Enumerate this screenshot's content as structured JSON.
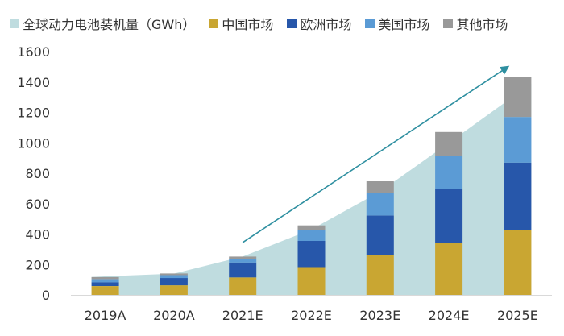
{
  "chart_data": {
    "type": "bar",
    "subtype": "stacked-bar with area",
    "categories": [
      "2019A",
      "2020A",
      "2021E",
      "2022E",
      "2023E",
      "2024E",
      "2025E"
    ],
    "area": {
      "name": "全球动力电池装机量（GWh）",
      "color": "#bfdcdf",
      "values": [
        118,
        140,
        252,
        430,
        680,
        1000,
        1390
      ]
    },
    "series": [
      {
        "name": "中国市场",
        "color": "#c9a632",
        "values": [
          58,
          63,
          115,
          183,
          263,
          340,
          428
        ]
      },
      {
        "name": "欧洲市场",
        "color": "#2757aa",
        "values": [
          25,
          48,
          98,
          172,
          259,
          355,
          442
        ]
      },
      {
        "name": "美国市场",
        "color": "#5b9bd5",
        "values": [
          20,
          19,
          22,
          71,
          148,
          218,
          300
        ]
      },
      {
        "name": "其他市场",
        "color": "#999999",
        "values": [
          14,
          11,
          17,
          31,
          77,
          158,
          263
        ]
      }
    ],
    "trend_arrow": {
      "color": "#2e8fa0",
      "from_category": "2021E",
      "to_category": "2025E",
      "from_value": 345,
      "to_value": 1500
    },
    "ylim": [
      0,
      1600
    ],
    "yticks": [
      0,
      200,
      400,
      600,
      800,
      1000,
      1200,
      1400,
      1600
    ],
    "title": "",
    "xlabel": "",
    "ylabel": ""
  }
}
